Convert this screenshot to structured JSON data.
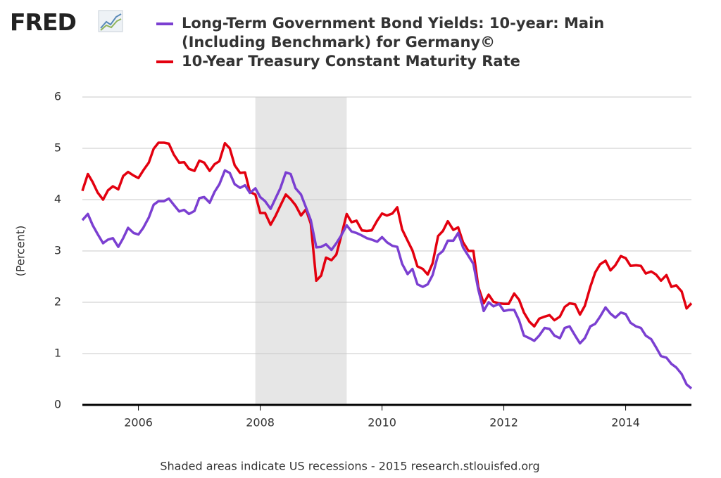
{
  "chart_data": {
    "type": "line",
    "logo": "FRED",
    "y_label": "(Percent)",
    "footer": "Shaded areas indicate US recessions - 2015 research.stlouisfed.org",
    "xlim": [
      2005.08,
      2015.08
    ],
    "xticks": [
      2006,
      2008,
      2010,
      2012,
      2014
    ],
    "ylim": [
      0,
      6
    ],
    "yticks": [
      0,
      1,
      2,
      3,
      4,
      5,
      6
    ],
    "grid": true,
    "recessions": [
      {
        "start": 2007.92,
        "end": 2009.42,
        "color": "#e6e6e6"
      }
    ],
    "x": [
      2005.08,
      2005.17,
      2005.25,
      2005.33,
      2005.42,
      2005.5,
      2005.58,
      2005.67,
      2005.75,
      2005.83,
      2005.92,
      2006,
      2006.08,
      2006.17,
      2006.25,
      2006.33,
      2006.42,
      2006.5,
      2006.58,
      2006.67,
      2006.75,
      2006.83,
      2006.92,
      2007,
      2007.08,
      2007.17,
      2007.25,
      2007.33,
      2007.42,
      2007.5,
      2007.58,
      2007.67,
      2007.75,
      2007.83,
      2007.92,
      2008,
      2008.08,
      2008.17,
      2008.25,
      2008.33,
      2008.42,
      2008.5,
      2008.58,
      2008.67,
      2008.75,
      2008.83,
      2008.92,
      2009,
      2009.08,
      2009.17,
      2009.25,
      2009.33,
      2009.42,
      2009.5,
      2009.58,
      2009.67,
      2009.75,
      2009.83,
      2009.92,
      2010,
      2010.08,
      2010.17,
      2010.25,
      2010.33,
      2010.42,
      2010.5,
      2010.58,
      2010.67,
      2010.75,
      2010.83,
      2010.92,
      2011,
      2011.08,
      2011.17,
      2011.25,
      2011.33,
      2011.42,
      2011.5,
      2011.58,
      2011.67,
      2011.75,
      2011.83,
      2011.92,
      2012,
      2012.08,
      2012.17,
      2012.25,
      2012.33,
      2012.42,
      2012.5,
      2012.58,
      2012.67,
      2012.75,
      2012.83,
      2012.92,
      2013,
      2013.08,
      2013.17,
      2013.25,
      2013.33,
      2013.42,
      2013.5,
      2013.58,
      2013.67,
      2013.75,
      2013.83,
      2013.92,
      2014,
      2014.08,
      2014.17,
      2014.25,
      2014.33,
      2014.42,
      2014.5,
      2014.58,
      2014.67,
      2014.75,
      2014.83,
      2014.92,
      2015,
      2015.08
    ],
    "series": [
      {
        "name": "Long-Term Government Bond Yields: 10-year: Main (Including Benchmark) for Germany©",
        "color": "#7b3fd1",
        "values": [
          3.6,
          3.72,
          3.5,
          3.33,
          3.15,
          3.22,
          3.25,
          3.08,
          3.25,
          3.45,
          3.35,
          3.32,
          3.45,
          3.65,
          3.9,
          3.97,
          3.97,
          4.02,
          3.9,
          3.77,
          3.8,
          3.72,
          3.78,
          4.03,
          4.05,
          3.94,
          4.15,
          4.3,
          4.57,
          4.52,
          4.3,
          4.23,
          4.28,
          4.13,
          4.22,
          4.05,
          3.97,
          3.82,
          4.02,
          4.22,
          4.53,
          4.5,
          4.22,
          4.1,
          3.85,
          3.6,
          3.07,
          3.08,
          3.13,
          3.02,
          3.15,
          3.3,
          3.5,
          3.38,
          3.35,
          3.3,
          3.25,
          3.22,
          3.18,
          3.27,
          3.17,
          3.1,
          3.08,
          2.75,
          2.55,
          2.65,
          2.35,
          2.3,
          2.35,
          2.53,
          2.92,
          3.0,
          3.2,
          3.2,
          3.35,
          3.07,
          2.9,
          2.75,
          2.25,
          1.83,
          2.0,
          1.92,
          1.97,
          1.83,
          1.85,
          1.85,
          1.65,
          1.35,
          1.3,
          1.25,
          1.35,
          1.5,
          1.48,
          1.35,
          1.3,
          1.5,
          1.53,
          1.35,
          1.2,
          1.3,
          1.53,
          1.58,
          1.72,
          1.9,
          1.78,
          1.7,
          1.8,
          1.77,
          1.6,
          1.53,
          1.5,
          1.35,
          1.28,
          1.12,
          0.95,
          0.92,
          0.8,
          0.73,
          0.6,
          0.4,
          0.32
        ]
      },
      {
        "name": "10-Year Treasury Constant Maturity Rate",
        "color": "#e3000f",
        "values": [
          4.17,
          4.5,
          4.34,
          4.14,
          4.0,
          4.18,
          4.26,
          4.2,
          4.46,
          4.54,
          4.47,
          4.42,
          4.57,
          4.72,
          4.99,
          5.11,
          5.11,
          5.09,
          4.88,
          4.72,
          4.73,
          4.6,
          4.56,
          4.76,
          4.72,
          4.56,
          4.69,
          4.75,
          5.1,
          5.0,
          4.67,
          4.52,
          4.53,
          4.15,
          4.1,
          3.74,
          3.74,
          3.51,
          3.68,
          3.88,
          4.1,
          4.01,
          3.89,
          3.69,
          3.81,
          3.53,
          2.42,
          2.52,
          2.87,
          2.82,
          2.93,
          3.29,
          3.72,
          3.56,
          3.59,
          3.4,
          3.39,
          3.4,
          3.59,
          3.73,
          3.69,
          3.73,
          3.85,
          3.42,
          3.2,
          3.01,
          2.7,
          2.65,
          2.54,
          2.76,
          3.29,
          3.39,
          3.58,
          3.41,
          3.46,
          3.17,
          3.0,
          3.0,
          2.3,
          1.98,
          2.15,
          2.01,
          1.98,
          1.97,
          1.97,
          2.17,
          2.05,
          1.8,
          1.62,
          1.53,
          1.68,
          1.72,
          1.75,
          1.65,
          1.72,
          1.91,
          1.98,
          1.96,
          1.76,
          1.93,
          2.3,
          2.58,
          2.74,
          2.81,
          2.62,
          2.72,
          2.9,
          2.86,
          2.71,
          2.72,
          2.71,
          2.56,
          2.6,
          2.54,
          2.42,
          2.53,
          2.3,
          2.33,
          2.21,
          1.88,
          1.98
        ]
      }
    ]
  }
}
